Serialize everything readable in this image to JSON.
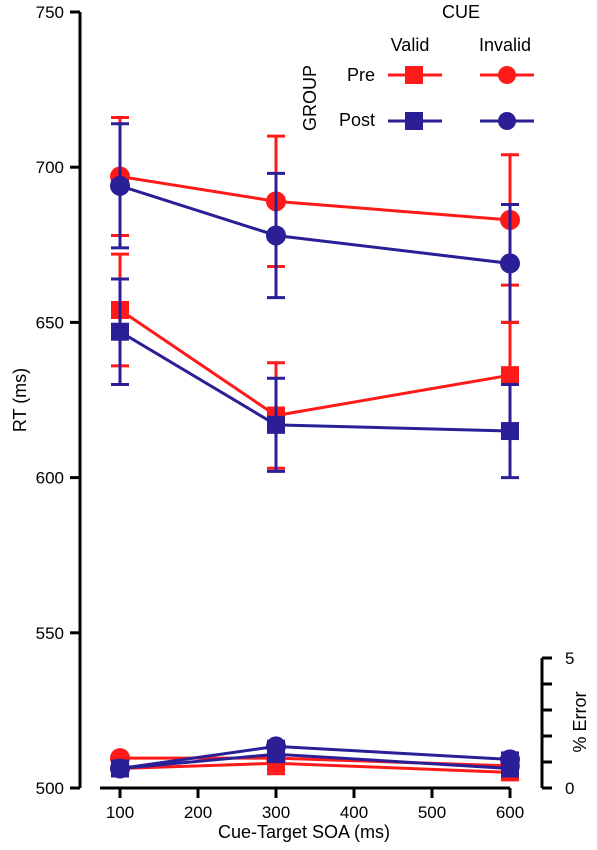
{
  "chart_data": {
    "type": "line",
    "xlabel": "Cue-Target SOA (ms)",
    "ylabel": "RT (ms)",
    "y2label": "% Error",
    "x": [
      100,
      300,
      600
    ],
    "xticks": [
      "100",
      "200",
      "300",
      "400",
      "500",
      "600"
    ],
    "xlim": [
      100,
      600
    ],
    "ylim": [
      500,
      750
    ],
    "yticks": [
      "500",
      "550",
      "600",
      "650",
      "700",
      "750"
    ],
    "y2lim": [
      0,
      5
    ],
    "y2ticks": [
      "0",
      "5"
    ],
    "grid": false,
    "legend": {
      "title": "CUE",
      "side_title": "GROUP",
      "columns": [
        "Valid",
        "Invalid"
      ],
      "rows": [
        "Pre",
        "Post"
      ],
      "placement": "top-right"
    },
    "colors": {
      "pre": "#ff1a1a",
      "post": "#2a1f96"
    },
    "rt_series": [
      {
        "group": "Pre",
        "cue": "Invalid",
        "marker": "circle",
        "color": "#ff1a1a",
        "values": [
          697,
          689,
          683
        ],
        "errors": [
          19,
          21,
          21
        ]
      },
      {
        "group": "Post",
        "cue": "Invalid",
        "marker": "circle",
        "color": "#2a1f96",
        "values": [
          694,
          678,
          669
        ],
        "errors": [
          20,
          20,
          19
        ]
      },
      {
        "group": "Pre",
        "cue": "Valid",
        "marker": "square",
        "color": "#ff1a1a",
        "values": [
          654,
          620,
          633
        ],
        "errors": [
          18,
          17,
          17
        ]
      },
      {
        "group": "Post",
        "cue": "Valid",
        "marker": "square",
        "color": "#2a1f96",
        "values": [
          647,
          617,
          615
        ],
        "errors": [
          17,
          15,
          15
        ]
      }
    ],
    "error_series": [
      {
        "group": "Pre",
        "cue": "Invalid",
        "marker": "circle",
        "color": "#ff1a1a",
        "values": [
          1.15,
          1.15,
          0.85
        ],
        "errors": [
          0,
          0,
          0
        ]
      },
      {
        "group": "Pre",
        "cue": "Valid",
        "marker": "square",
        "color": "#ff1a1a",
        "values": [
          0.75,
          0.95,
          0.6
        ],
        "errors": [
          0,
          0.4,
          0
        ]
      },
      {
        "group": "Post",
        "cue": "Valid",
        "marker": "square",
        "color": "#2a1f96",
        "values": [
          0.75,
          1.3,
          0.75
        ],
        "errors": [
          0,
          0,
          0
        ]
      },
      {
        "group": "Post",
        "cue": "Invalid",
        "marker": "circle",
        "color": "#2a1f96",
        "values": [
          0.75,
          1.6,
          1.1
        ],
        "errors": [
          0,
          0.2,
          0.25
        ]
      }
    ]
  }
}
